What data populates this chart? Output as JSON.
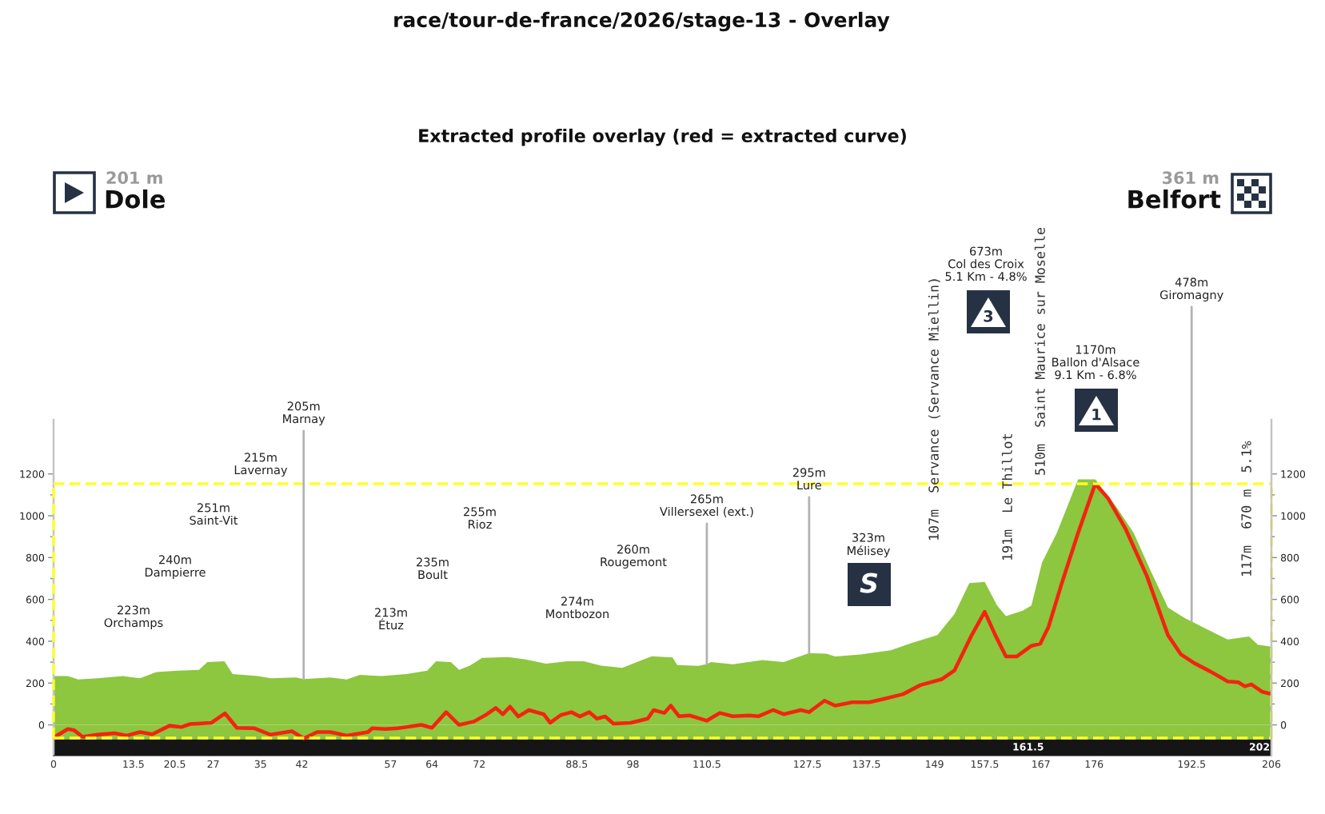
{
  "chart_data": {
    "type": "area",
    "title": "race/tour-de-france/2026/stage-13 - Overlay",
    "subtitle": "Extracted profile overlay (red = extracted curve)",
    "xlim": [
      0,
      206
    ],
    "xticks": [
      0,
      13.5,
      20.5,
      27,
      35,
      42,
      57,
      64,
      72,
      88.5,
      98,
      110.5,
      127.5,
      137.5,
      149,
      157.5,
      167,
      176,
      192.5,
      206
    ],
    "ylim": [
      -147,
      1459
    ],
    "yticks": [
      0,
      {
        "value": 100,
        "label": null
      },
      200,
      {
        "value": 300,
        "label": null
      },
      400,
      {
        "value": 500,
        "label": null
      },
      600,
      {
        "value": 700,
        "label": null
      },
      800,
      {
        "value": 900,
        "label": null
      },
      1000,
      {
        "value": 1100,
        "label": null
      },
      1200
    ],
    "y2lim": [
      -147,
      1459
    ],
    "y2ticks": [
      0,
      {
        "value": 100,
        "label": null
      },
      200,
      {
        "value": 300,
        "label": null
      },
      400,
      {
        "value": 500,
        "label": null
      },
      600,
      {
        "value": 700,
        "label": null
      },
      800,
      {
        "value": 900,
        "label": null
      },
      1000,
      {
        "value": 1100,
        "label": null
      },
      1200
    ],
    "series": [
      {
        "color": "#8dc63f",
        "x": [
          0,
          2.4,
          4.2,
          7.4,
          11.7,
          14.6,
          17.4,
          21.0,
          24.6,
          26.0,
          28.9,
          30.3,
          34.6,
          36.7,
          41.0,
          42.3,
          46.8,
          49.6,
          51.8,
          55.4,
          59.7,
          63.2,
          64.7,
          67.2,
          68.6,
          70.4,
          72.5,
          76.8,
          79.7,
          83.3,
          86.9,
          89.7,
          92.6,
          96.2,
          99.0,
          101.2,
          104.7,
          105.5,
          109.1,
          110.5,
          111.2,
          114.9,
          119.9,
          123.5,
          127.8,
          130.7,
          132.2,
          136.5,
          141.6,
          145.2,
          149.5,
          152.4,
          154.9,
          157.5,
          159.6,
          161.1,
          164.0,
          165.4,
          167.2,
          169.7,
          173.3,
          176.2,
          179.8,
          182.7,
          185.6,
          188.5,
          191.4,
          192.5,
          194.3,
          198.6,
          202.2,
          203.7,
          206
        ],
        "values": [
          233,
          233,
          217,
          223,
          233,
          223,
          253,
          259,
          263,
          300,
          304,
          243,
          233,
          223,
          227,
          219,
          227,
          217,
          239,
          233,
          243,
          259,
          304,
          300,
          263,
          283,
          320,
          324,
          314,
          293,
          304,
          304,
          283,
          273,
          304,
          328,
          322,
          286,
          282,
          291,
          300,
          290,
          310,
          300,
          343,
          341,
          327,
          337,
          357,
          392,
          429,
          531,
          678,
          684,
          571,
          520,
          547,
          571,
          776,
          918,
          1174,
          1174,
          1041,
          918,
          735,
          561,
          510,
          494,
          469,
          408,
          423,
          384,
          374
        ]
      },
      {
        "type": "line",
        "color": "#f3240f",
        "x": [
          0,
          2.4,
          3.5,
          4.9,
          7.4,
          10.3,
          12.4,
          14.6,
          16.7,
          19.6,
          21.7,
          23.1,
          26.7,
          29.0,
          31.0,
          33.9,
          36.7,
          40.3,
          42.3,
          44.6,
          46.8,
          49.6,
          53.2,
          53.9,
          56.1,
          58.2,
          62.2,
          64.0,
          66.4,
          68.6,
          71.1,
          73.3,
          74.8,
          76.0,
          77.2,
          78.6,
          80.4,
          82.9,
          84.0,
          85.8,
          87.6,
          89.0,
          90.6,
          91.9,
          93.3,
          94.7,
          97.6,
          100.5,
          101.5,
          103.3,
          104.4,
          105.8,
          107.6,
          110.5,
          112.7,
          114.9,
          117.7,
          119.2,
          121.7,
          123.5,
          126.4,
          127.8,
          130.4,
          132.2,
          135.1,
          138.0,
          140.9,
          143.7,
          146.6,
          150.2,
          152.4,
          155.3,
          157.5,
          159.3,
          161.1,
          162.9,
          165.4,
          166.9,
          168.3,
          170.5,
          173.3,
          176.2,
          178.4,
          181.3,
          184.9,
          188.5,
          190.7,
          192.9,
          195.7,
          198.6,
          200.4,
          201.5,
          202.6,
          204.4,
          206
        ],
        "values": [
          -61,
          -20,
          -26,
          -57,
          -47,
          -40,
          -51,
          -34,
          -45,
          -4,
          -10,
          4,
          10,
          55,
          -14,
          -16,
          -47,
          -30,
          -65,
          -34,
          -34,
          -51,
          -34,
          -16,
          -20,
          -16,
          0,
          -14,
          61,
          0,
          16,
          51,
          81,
          51,
          87,
          40,
          71,
          51,
          10,
          47,
          61,
          40,
          61,
          30,
          40,
          6,
          10,
          30,
          71,
          57,
          92,
          41,
          45,
          20,
          57,
          41,
          45,
          41,
          71,
          51,
          71,
          61,
          116,
          92,
          108,
          108,
          127,
          147,
          190,
          218,
          261,
          429,
          541,
          429,
          327,
          327,
          378,
          388,
          469,
          674,
          918,
          1153,
          1082,
          939,
          714,
          429,
          337,
          296,
          255,
          208,
          204,
          184,
          194,
          159,
          147
        ]
      }
    ],
    "bands": [
      {
        "axis": "y",
        "from": -70,
        "to": 0,
        "color": "#8dc63f"
      },
      {
        "axis": "y",
        "from": -147,
        "to": -70,
        "color": "#151515"
      }
    ],
    "ref_lines": [
      {
        "axis": "y",
        "value": 1153,
        "color": "#ffff26",
        "line_style": "dashed"
      },
      {
        "axis": "y",
        "value": -63,
        "color": "#ffff26",
        "line_style": "dashed"
      },
      {
        "axis": "x",
        "value": 0,
        "color": "#ffff26",
        "line_style": "dashed"
      },
      {
        "axis": "x",
        "value": 206,
        "color": "#ffff26",
        "line_style": "dashed"
      }
    ],
    "annotations": [
      "201 m",
      "Dole",
      "361 m",
      "Belfort",
      "223m\nOrchamps",
      "240m\nDampierre",
      "251m\nSaint-Vit",
      "215m\nLavernay",
      {
        "text": "205m\nMarnay",
        "x": 42.3,
        "y": 219
      },
      "213m\nÉtuz",
      "235m\nBoult",
      "255m\nRioz",
      "274m\nMontbozon",
      "260m\nRougemont",
      {
        "text": "265m\nVillersexel (ext.)",
        "x": 110.5,
        "y": 291
      },
      {
        "text": "295m\nLure",
        "x": 127.8,
        "y": 343
      },
      "323m\nMélisey",
      "S",
      "107m  Servance (Servance Miellin)",
      "673m\nCol des Croix\n5.1 Km - 4.8%",
      "3",
      "191m  Le Thillot",
      "510m  Saint Maurice sur Moselle",
      "1170m\nBallon d'Alsace\n9.1 Km - 6.8%",
      "1",
      {
        "text": "478m\nGiromagny",
        "x": 192.5,
        "y": 494
      },
      "117m  670 m  5.1%",
      "161.5",
      "202"
    ]
  }
}
